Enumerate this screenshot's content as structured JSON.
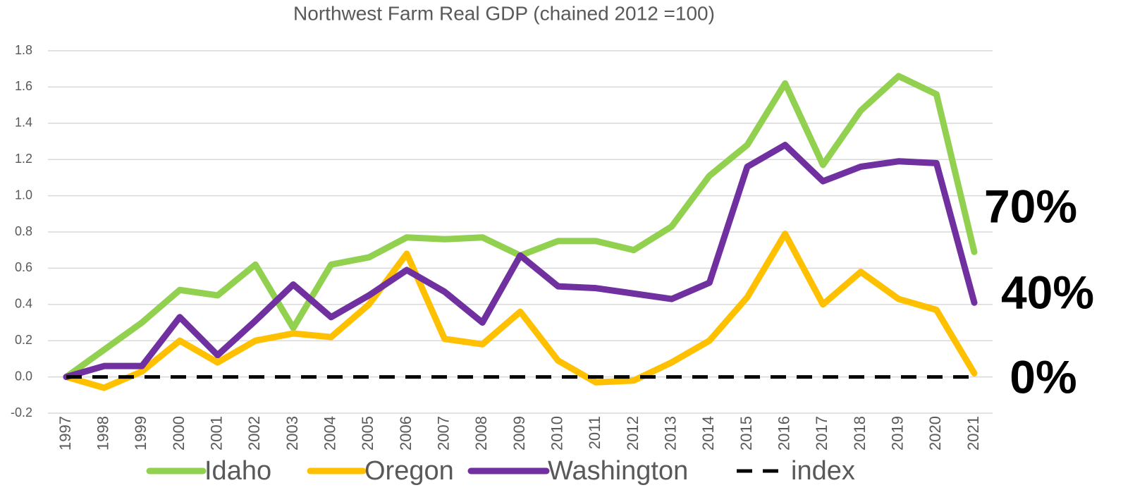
{
  "chart_data": {
    "type": "line",
    "title": "Northwest Farm Real GDP (chained 2012 =100)",
    "categories": [
      "1997",
      "1998",
      "1999",
      "2000",
      "2001",
      "2002",
      "2003",
      "2004",
      "2005",
      "2006",
      "2007",
      "2008",
      "2009",
      "2010",
      "2011",
      "2012",
      "2013",
      "2014",
      "2015",
      "2016",
      "2017",
      "2018",
      "2019",
      "2020",
      "2021"
    ],
    "series": [
      {
        "name": "Idaho",
        "color": "#92d050",
        "values": [
          0,
          0.15,
          0.3,
          0.48,
          0.45,
          0.62,
          0.27,
          0.62,
          0.66,
          0.77,
          0.76,
          0.77,
          0.67,
          0.75,
          0.75,
          0.7,
          0.83,
          1.11,
          1.28,
          1.62,
          1.17,
          1.47,
          1.66,
          1.56,
          0.69
        ]
      },
      {
        "name": "Oregon",
        "color": "#ffc000",
        "values": [
          0,
          -0.06,
          0.03,
          0.2,
          0.08,
          0.2,
          0.24,
          0.22,
          0.4,
          0.68,
          0.21,
          0.18,
          0.36,
          0.09,
          -0.03,
          -0.02,
          0.08,
          0.2,
          0.44,
          0.79,
          0.4,
          0.58,
          0.43,
          0.37,
          0.02
        ]
      },
      {
        "name": "Washington",
        "color": "#7030a0",
        "values": [
          0,
          0.06,
          0.06,
          0.33,
          0.12,
          0.31,
          0.51,
          0.33,
          0.45,
          0.59,
          0.47,
          0.3,
          0.67,
          0.5,
          0.49,
          0.46,
          0.43,
          0.52,
          1.16,
          1.28,
          1.08,
          1.16,
          1.19,
          1.18,
          0.41
        ]
      },
      {
        "name": "index",
        "color": "#000000",
        "dashed": true,
        "values": [
          0,
          0,
          0,
          0,
          0,
          0,
          0,
          0,
          0,
          0,
          0,
          0,
          0,
          0,
          0,
          0,
          0,
          0,
          0,
          0,
          0,
          0,
          0,
          0,
          0
        ]
      }
    ],
    "ylim": [
      -0.2,
      1.8
    ],
    "yticks": [
      -0.2,
      {
        "value": 0,
        "label": "0.0"
      },
      0.2,
      0.4,
      0.6,
      0.8,
      {
        "value": 1,
        "label": "1.0"
      },
      1.2,
      1.4,
      1.6,
      1.8
    ],
    "grid": true,
    "legend": "bottom",
    "annotations": [
      "70%",
      "40%",
      "0%"
    ]
  }
}
